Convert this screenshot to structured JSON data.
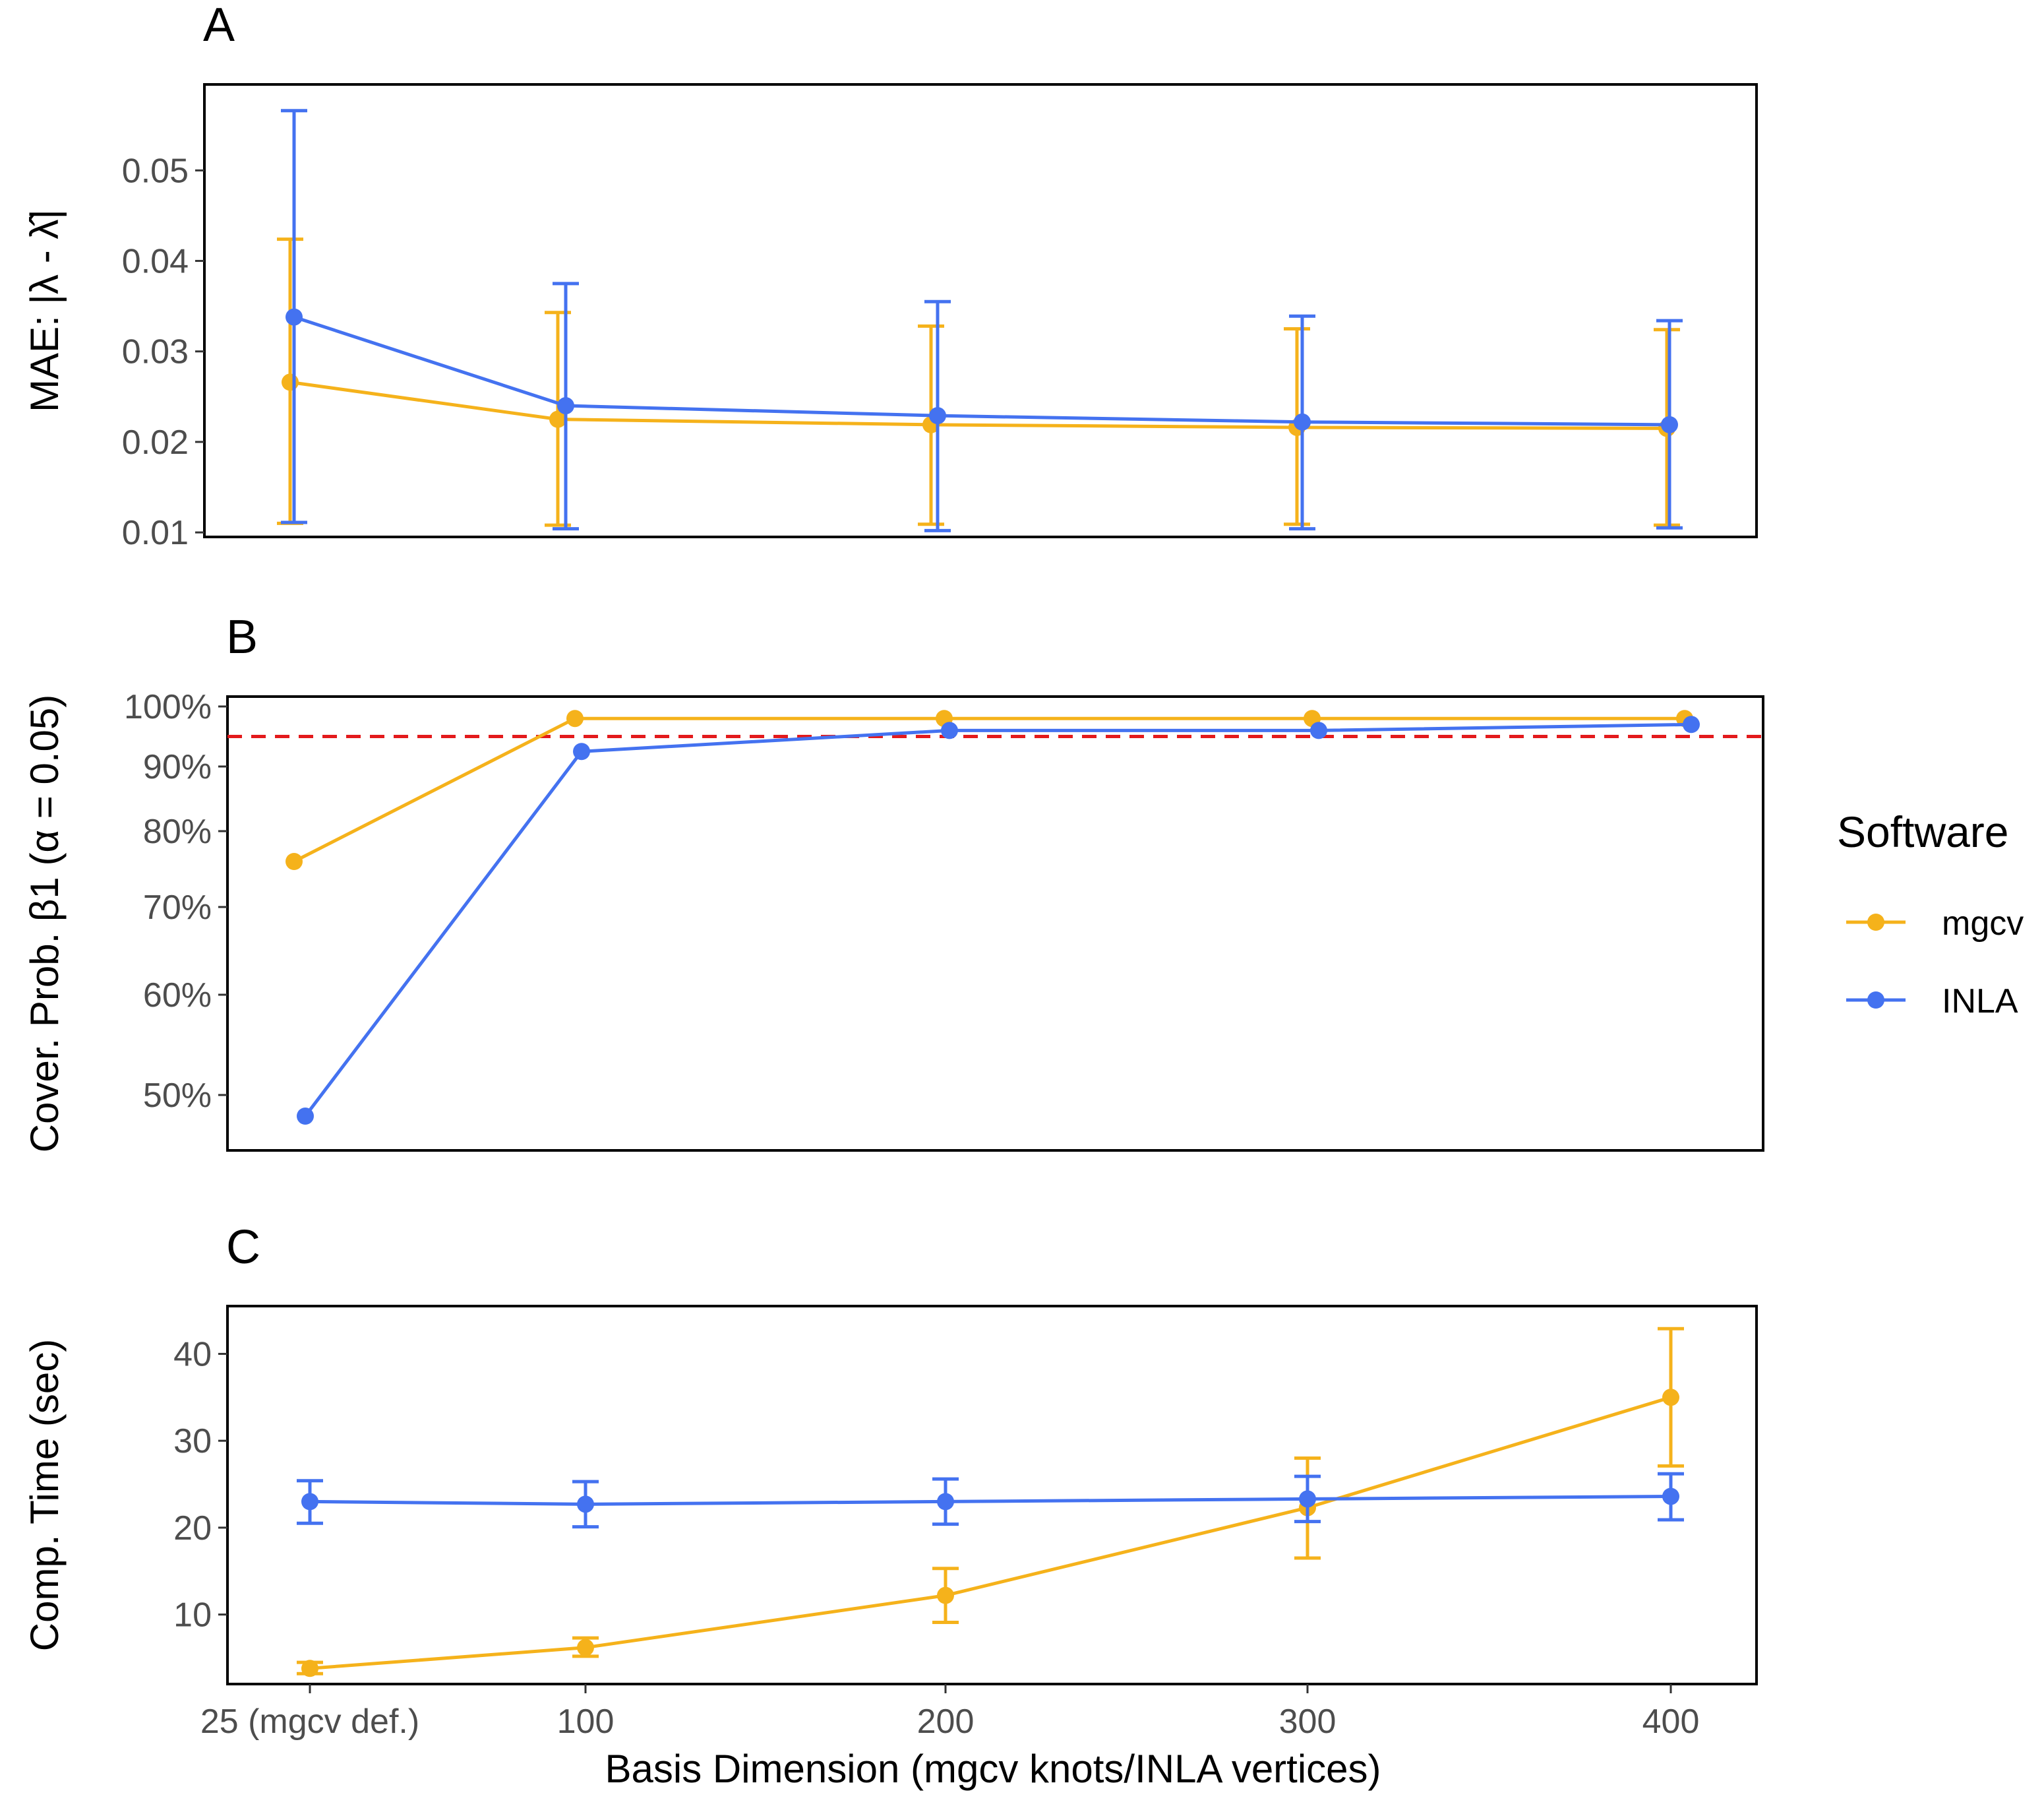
{
  "colors": {
    "mgcv": "#F5B21B",
    "INLA": "#4472F0",
    "reference": "#E31A1C",
    "frame": "#000000",
    "tick_text": "#4d4d4d"
  },
  "legend": {
    "title": "Software",
    "placement": "right",
    "items": [
      {
        "name": "mgcv",
        "color": "#F5B21B"
      },
      {
        "name": "INLA",
        "color": "#4472F0"
      }
    ]
  },
  "shared_x": {
    "label": "Basis Dimension (mgcv knots/INLA vertices)",
    "categories": [
      "25 (mgcv def.)",
      "100",
      "200",
      "300",
      "400"
    ],
    "values": [
      25,
      100,
      200,
      300,
      400
    ]
  },
  "chart_data": [
    {
      "panel": "A",
      "type": "line",
      "ylabel": "MAE: |λ - λ̂|",
      "ylim": [
        0.0095,
        0.0595
      ],
      "yticks": [
        0.01,
        0.02,
        0.03,
        0.04,
        0.05
      ],
      "ytick_labels": [
        "0.01",
        "0.02",
        "0.03",
        "0.04",
        "0.05"
      ],
      "x": [
        25,
        100,
        200,
        300,
        400
      ],
      "error_bars": true,
      "series": [
        {
          "name": "mgcv",
          "color": "#F5B21B",
          "values": [
            0.0266,
            0.0225,
            0.0219,
            0.0216,
            0.0215
          ],
          "lower": [
            0.011,
            0.0108,
            0.0109,
            0.0109,
            0.0108
          ],
          "upper": [
            0.0424,
            0.0343,
            0.0328,
            0.0325,
            0.0324
          ]
        },
        {
          "name": "INLA",
          "color": "#4472F0",
          "values": [
            0.0338,
            0.024,
            0.0229,
            0.0222,
            0.0219
          ],
          "lower": [
            0.0111,
            0.0104,
            0.0102,
            0.0104,
            0.0105
          ],
          "upper": [
            0.0566,
            0.0375,
            0.0355,
            0.0339,
            0.0334
          ]
        }
      ],
      "grid": false
    },
    {
      "panel": "B",
      "type": "line",
      "ylabel": "Cover. Prob. β1 (α = 0.05)",
      "ylim": [
        0.45,
        1.01
      ],
      "yscale": "non-linear (compressed toward 100%)",
      "yticks": [
        0.5,
        0.6,
        0.7,
        0.8,
        0.9,
        1.0
      ],
      "ytick_labels": [
        "50%",
        "60%",
        "70%",
        "80%",
        "90%",
        "100%"
      ],
      "x": [
        25,
        100,
        200,
        300,
        400
      ],
      "reference_line": {
        "y": 0.95,
        "style": "dashed",
        "color": "#E31A1C"
      },
      "series": [
        {
          "name": "mgcv",
          "color": "#F5B21B",
          "values": [
            0.76,
            0.98,
            0.98,
            0.98,
            0.98
          ]
        },
        {
          "name": "INLA",
          "color": "#4472F0",
          "values": [
            0.46,
            0.925,
            0.96,
            0.96,
            0.97
          ]
        }
      ],
      "grid": false
    },
    {
      "panel": "C",
      "type": "line",
      "ylabel": "Comp. Time (sec)",
      "xlabel": "Basis Dimension (mgcv knots/INLA vertices)",
      "ylim": [
        2.0,
        45.5
      ],
      "yticks": [
        10,
        20,
        30,
        40
      ],
      "ytick_labels": [
        "10",
        "20",
        "30",
        "40"
      ],
      "x": [
        25,
        100,
        200,
        300,
        400
      ],
      "error_bars": true,
      "series": [
        {
          "name": "mgcv",
          "color": "#F5B21B",
          "values": [
            3.8,
            6.2,
            12.2,
            22.3,
            35.0
          ],
          "lower": [
            3.2,
            5.2,
            9.1,
            16.5,
            27.1
          ],
          "upper": [
            4.5,
            7.3,
            15.3,
            28.0,
            42.9
          ]
        },
        {
          "name": "INLA",
          "color": "#4472F0",
          "values": [
            23.0,
            22.7,
            23.0,
            23.3,
            23.6
          ],
          "lower": [
            20.5,
            20.1,
            20.4,
            20.7,
            20.9
          ],
          "upper": [
            25.4,
            25.3,
            25.6,
            25.9,
            26.2
          ]
        }
      ],
      "grid": false
    }
  ]
}
